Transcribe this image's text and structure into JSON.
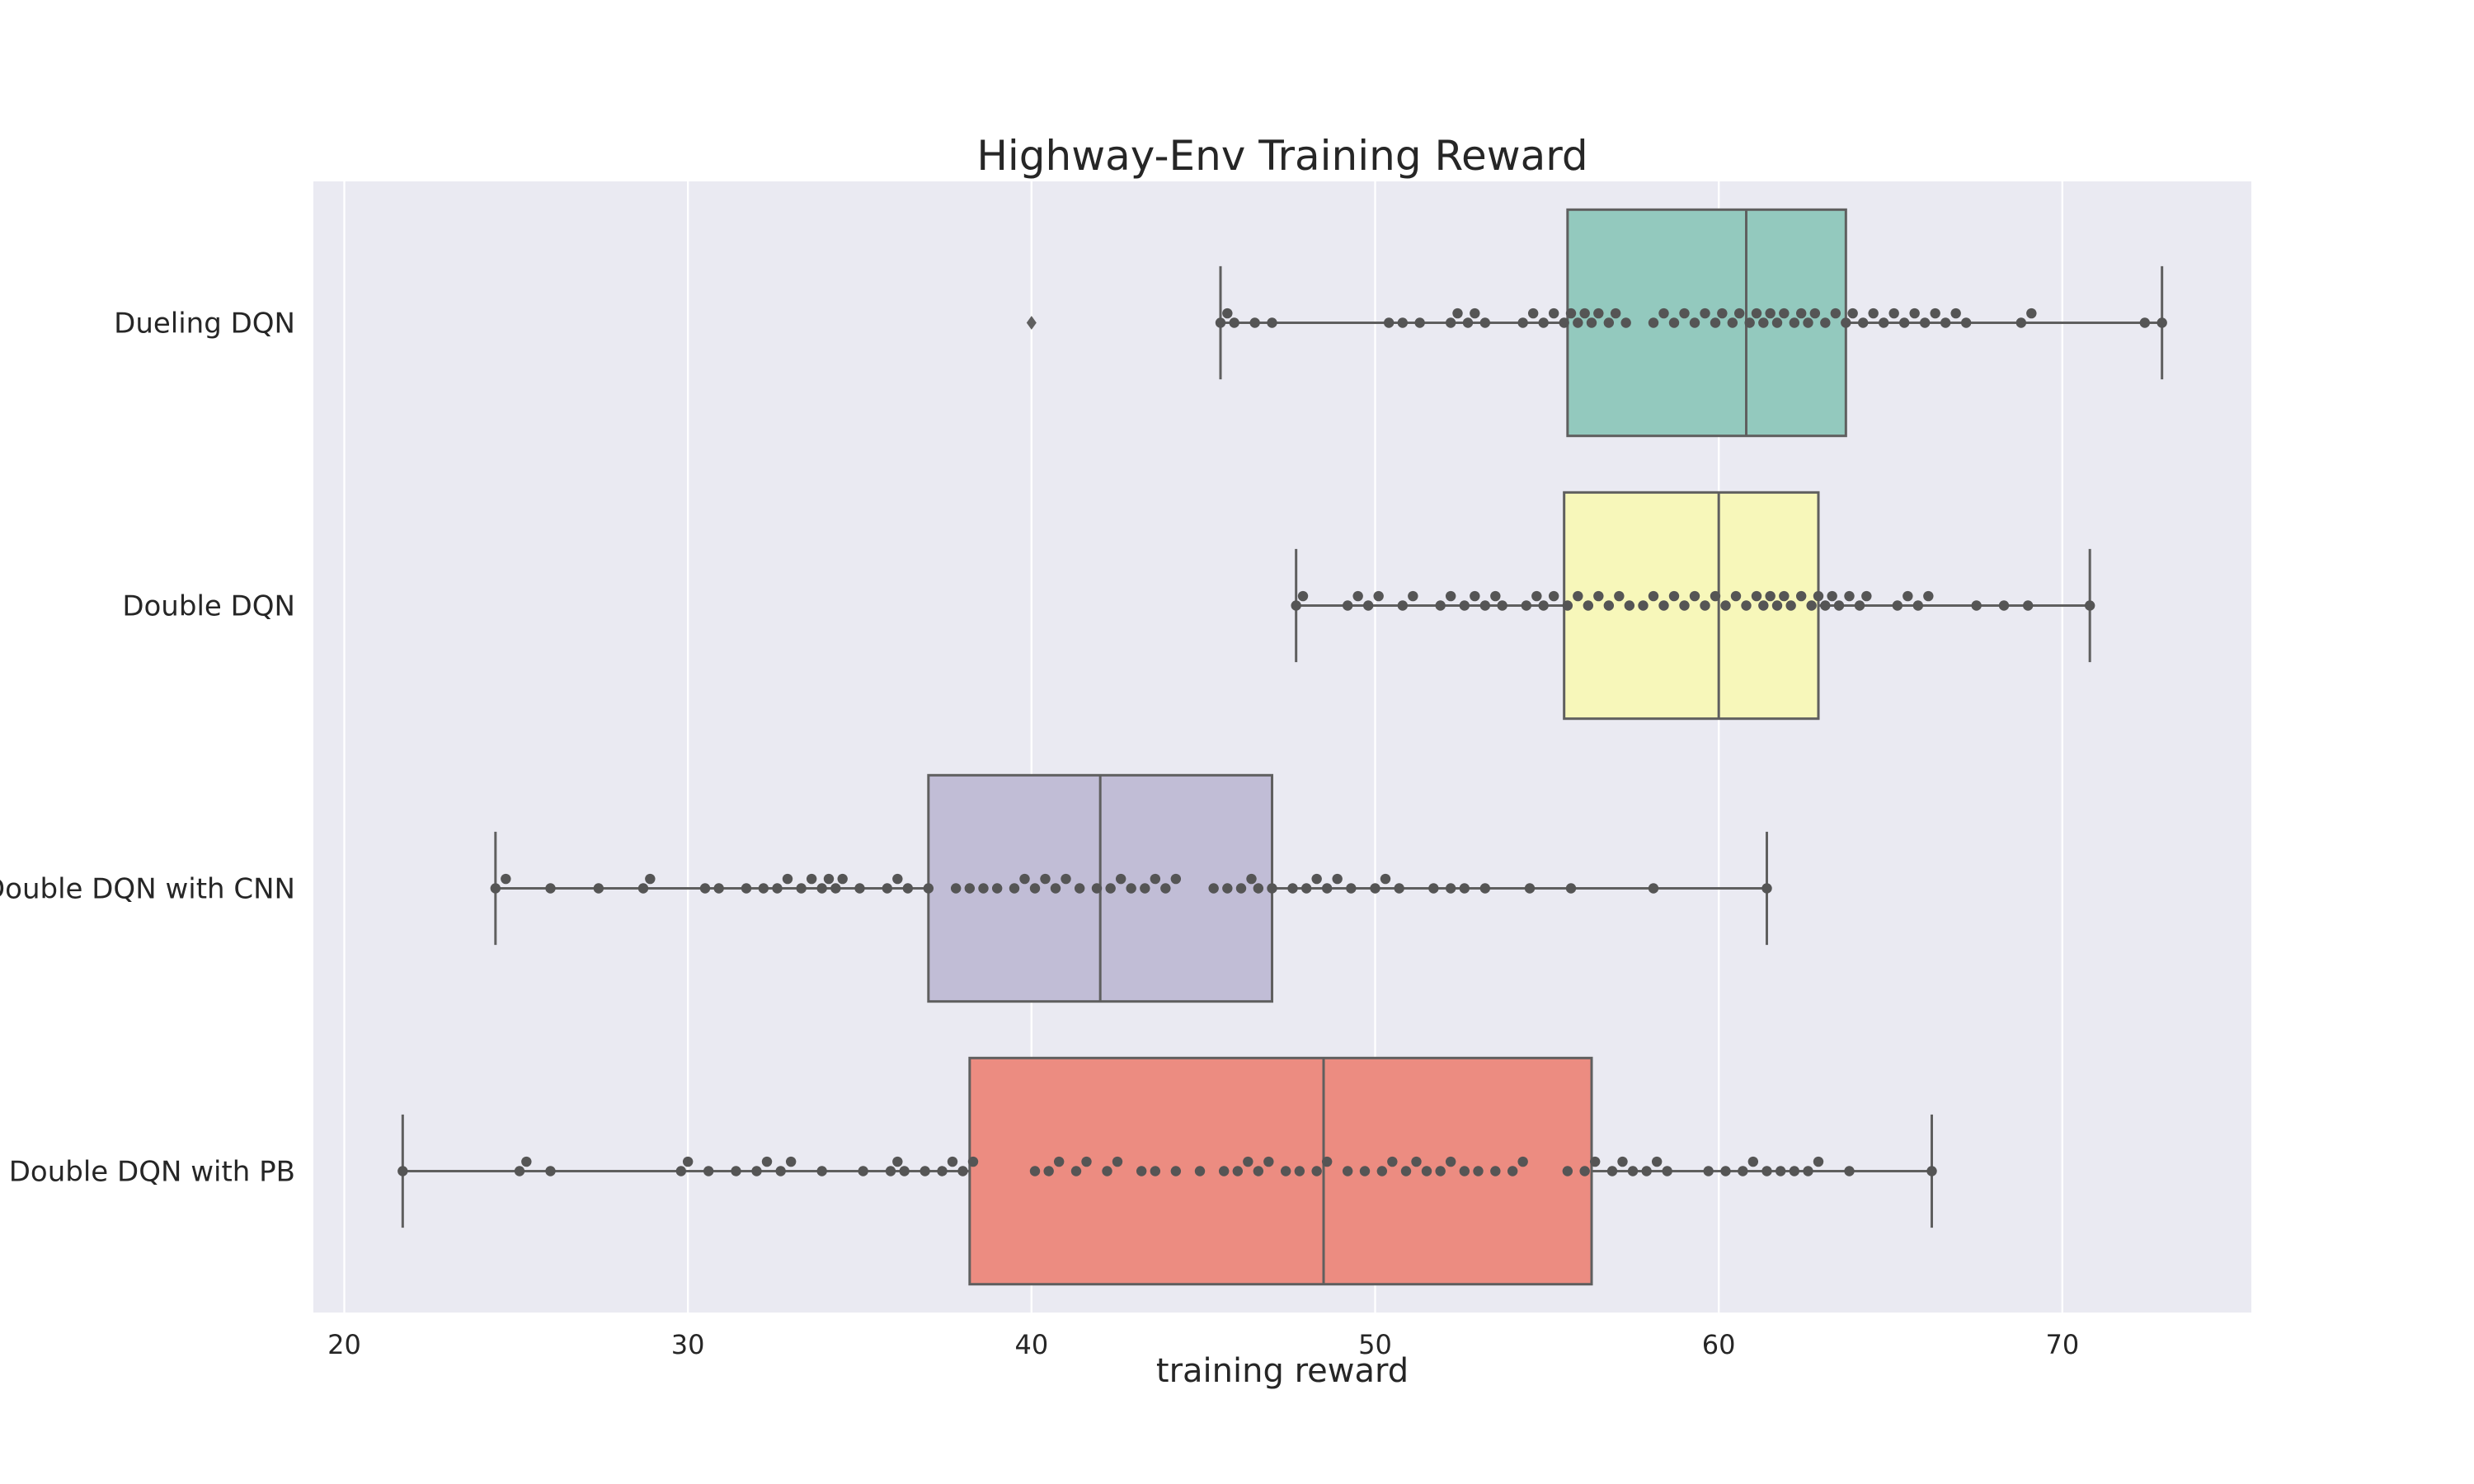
{
  "chart_data": {
    "type": "box",
    "title": "Highway-Env Training Reward",
    "xlabel": "training reward",
    "ylabel": "",
    "xlim": [
      19.1,
      75.5
    ],
    "xticks": [
      20,
      30,
      40,
      50,
      60,
      70
    ],
    "grid": true,
    "orientation": "horizontal",
    "series": [
      {
        "name": "Dueling DQN",
        "color": "#93c9be",
        "min": 45.5,
        "q1": 55.6,
        "median": 60.8,
        "q3": 63.7,
        "max": 72.9,
        "outliers": [
          40.0
        ],
        "points": [
          45.5,
          45.7,
          45.9,
          46.5,
          47.0,
          50.4,
          50.8,
          51.3,
          52.2,
          52.4,
          52.7,
          52.9,
          53.2,
          54.3,
          54.6,
          54.9,
          55.2,
          55.5,
          55.7,
          55.9,
          56.1,
          56.3,
          56.5,
          56.8,
          57.0,
          57.3,
          58.1,
          58.4,
          58.7,
          59.0,
          59.3,
          59.6,
          59.9,
          60.1,
          60.4,
          60.6,
          60.9,
          61.1,
          61.3,
          61.5,
          61.7,
          61.9,
          62.2,
          62.4,
          62.6,
          62.8,
          63.1,
          63.4,
          63.7,
          63.9,
          64.2,
          64.5,
          64.8,
          65.1,
          65.4,
          65.7,
          66.0,
          66.3,
          66.6,
          66.9,
          67.2,
          68.8,
          69.1,
          72.4,
          72.9
        ]
      },
      {
        "name": "Double DQN",
        "color": "#f7f7ba",
        "min": 47.7,
        "q1": 55.5,
        "median": 60.0,
        "q3": 62.9,
        "max": 70.8,
        "outliers": [],
        "points": [
          47.7,
          47.9,
          49.2,
          49.5,
          49.8,
          50.1,
          50.8,
          51.1,
          51.9,
          52.2,
          52.6,
          52.9,
          53.2,
          53.5,
          53.7,
          54.4,
          54.7,
          54.9,
          55.2,
          55.6,
          55.9,
          56.2,
          56.5,
          56.8,
          57.1,
          57.4,
          57.8,
          58.1,
          58.4,
          58.7,
          59.0,
          59.3,
          59.6,
          59.9,
          60.2,
          60.5,
          60.8,
          61.1,
          61.3,
          61.5,
          61.7,
          61.9,
          62.1,
          62.4,
          62.7,
          62.9,
          63.1,
          63.3,
          63.5,
          63.8,
          64.1,
          64.3,
          65.2,
          65.5,
          65.8,
          66.1,
          67.5,
          68.3,
          69.0,
          70.8
        ]
      },
      {
        "name": "Double DQN with CNN",
        "color": "#c1bdd6",
        "min": 24.4,
        "q1": 37.0,
        "median": 42.0,
        "q3": 47.0,
        "max": 61.4,
        "outliers": [],
        "points": [
          24.4,
          24.7,
          26.0,
          27.4,
          28.7,
          28.9,
          30.5,
          30.9,
          31.7,
          32.2,
          32.6,
          32.9,
          33.3,
          33.6,
          33.9,
          34.1,
          34.3,
          34.5,
          35.0,
          35.8,
          36.1,
          36.4,
          37.0,
          37.8,
          38.2,
          38.6,
          39.0,
          39.5,
          39.8,
          40.1,
          40.4,
          40.7,
          41.0,
          41.4,
          41.9,
          42.3,
          42.6,
          42.9,
          43.3,
          43.6,
          43.9,
          44.2,
          45.3,
          45.7,
          46.1,
          46.4,
          46.6,
          47.0,
          47.6,
          48.0,
          48.3,
          48.6,
          48.9,
          49.3,
          50.0,
          50.3,
          50.7,
          51.7,
          52.2,
          52.6,
          53.2,
          54.5,
          55.7,
          58.1,
          61.4
        ]
      },
      {
        "name": "Double DQN with PB",
        "color": "#ec8c81",
        "min": 21.7,
        "q1": 38.2,
        "median": 48.5,
        "q3": 56.3,
        "max": 66.2,
        "outliers": [],
        "points": [
          21.7,
          25.1,
          25.3,
          26.0,
          29.8,
          30.0,
          30.6,
          31.4,
          32.0,
          32.3,
          32.7,
          33.0,
          33.9,
          35.1,
          35.9,
          36.1,
          36.3,
          36.9,
          37.4,
          37.7,
          38.0,
          38.3,
          40.1,
          40.5,
          40.8,
          41.3,
          41.6,
          42.2,
          42.5,
          43.2,
          43.6,
          44.2,
          44.9,
          45.6,
          46.0,
          46.3,
          46.6,
          46.9,
          47.4,
          47.8,
          48.3,
          48.6,
          49.2,
          49.7,
          50.2,
          50.5,
          50.9,
          51.2,
          51.5,
          51.9,
          52.2,
          52.6,
          53.0,
          53.5,
          54.0,
          54.3,
          55.6,
          56.1,
          56.4,
          56.9,
          57.2,
          57.5,
          57.9,
          58.2,
          58.5,
          59.7,
          60.2,
          60.7,
          61.0,
          61.4,
          61.8,
          62.2,
          62.6,
          62.9,
          63.8,
          66.2
        ]
      }
    ]
  }
}
